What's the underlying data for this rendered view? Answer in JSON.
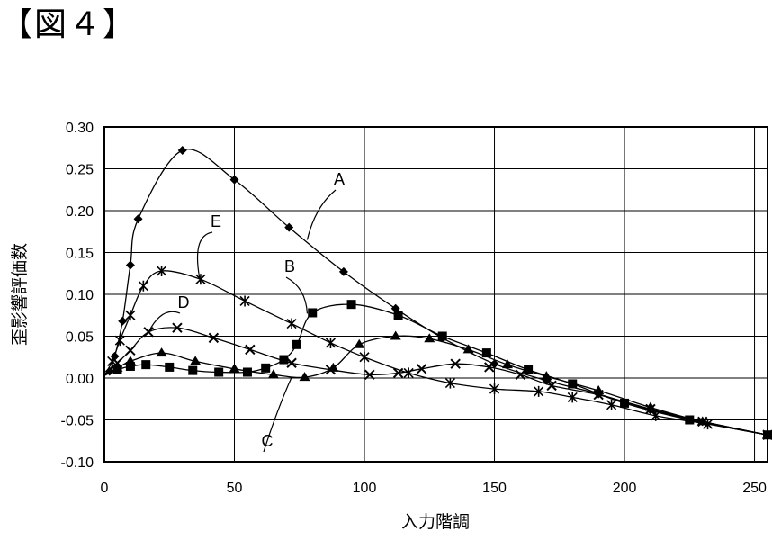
{
  "figure": {
    "title": "【図４】"
  },
  "chart_data": {
    "type": "line",
    "title": "",
    "xlabel": "入力階調",
    "ylabel": "歪影響評価数",
    "xlim": [
      0,
      255
    ],
    "ylim": [
      -0.1,
      0.3
    ],
    "xticks": [
      "0",
      "50",
      "100",
      "150",
      "200",
      "250"
    ],
    "yticks": [
      "0.30",
      "0.25",
      "0.20",
      "0.15",
      "0.10",
      "0.05",
      "0.00",
      "-0.05",
      "-0.10"
    ],
    "grid": true,
    "legend": "direct-labels",
    "series": [
      {
        "name": "A",
        "marker": "diamond",
        "x": [
          0,
          2,
          4,
          7,
          10,
          13,
          30,
          50,
          71,
          92,
          112,
          130,
          150,
          170,
          190,
          210,
          230,
          255
        ],
        "y": [
          0.003,
          0.008,
          0.026,
          0.068,
          0.135,
          0.19,
          0.272,
          0.237,
          0.18,
          0.127,
          0.083,
          0.048,
          0.017,
          -0.003,
          -0.019,
          -0.038,
          -0.052,
          -0.068
        ]
      },
      {
        "name": "B",
        "marker": "square",
        "x": [
          0,
          5,
          10,
          16,
          25,
          34,
          44,
          55,
          62,
          69,
          74,
          80,
          95,
          113,
          130,
          147,
          163,
          180,
          200,
          225,
          255
        ],
        "y": [
          0.003,
          0.01,
          0.014,
          0.016,
          0.013,
          0.009,
          0.007,
          0.007,
          0.012,
          0.022,
          0.04,
          0.078,
          0.088,
          0.075,
          0.05,
          0.03,
          0.01,
          -0.007,
          -0.03,
          -0.05,
          -0.068
        ]
      },
      {
        "name": "C",
        "marker": "triangle",
        "x": [
          0,
          5,
          10,
          22,
          35,
          50,
          65,
          77,
          88,
          98,
          112,
          125,
          140,
          155,
          170,
          190,
          210,
          230,
          255
        ],
        "y": [
          0.003,
          0.012,
          0.02,
          0.03,
          0.02,
          0.011,
          0.004,
          0.001,
          0.012,
          0.04,
          0.05,
          0.047,
          0.034,
          0.016,
          0.002,
          -0.015,
          -0.035,
          -0.052,
          -0.068
        ]
      },
      {
        "name": "D",
        "marker": "x",
        "x": [
          0,
          5,
          10,
          17,
          28,
          42,
          56,
          72,
          87,
          102,
          113,
          122,
          135,
          148,
          160,
          172,
          190,
          210,
          230,
          255
        ],
        "y": [
          0.003,
          0.018,
          0.033,
          0.055,
          0.06,
          0.048,
          0.034,
          0.018,
          0.01,
          0.004,
          0.006,
          0.011,
          0.017,
          0.013,
          0.004,
          -0.009,
          -0.02,
          -0.037,
          -0.052,
          -0.068
        ]
      },
      {
        "name": "E",
        "marker": "asterisk",
        "x": [
          0,
          3,
          6,
          10,
          15,
          22,
          37,
          54,
          72,
          87,
          100,
          117,
          133,
          150,
          167,
          180,
          195,
          212,
          232,
          255
        ],
        "y": [
          0.003,
          0.02,
          0.045,
          0.075,
          0.11,
          0.128,
          0.118,
          0.092,
          0.065,
          0.042,
          0.025,
          0.006,
          -0.006,
          -0.013,
          -0.016,
          -0.023,
          -0.032,
          -0.045,
          -0.055,
          -0.068
        ]
      }
    ],
    "annotations": [
      {
        "text": "A",
        "series": "A"
      },
      {
        "text": "B",
        "series": "B"
      },
      {
        "text": "C",
        "series": "C"
      },
      {
        "text": "D",
        "series": "D"
      },
      {
        "text": "E",
        "series": "E"
      }
    ]
  }
}
